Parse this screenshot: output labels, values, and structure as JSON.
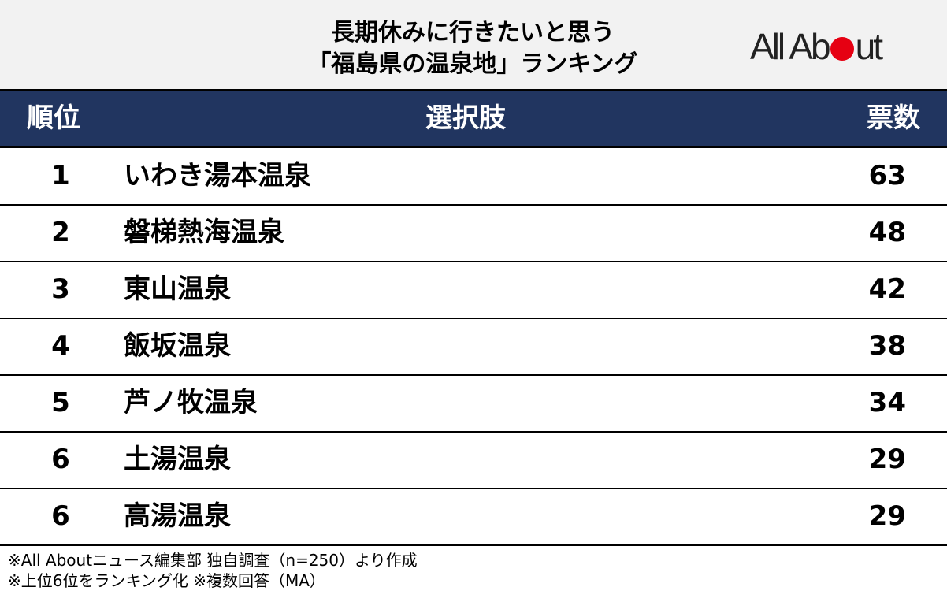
{
  "title_line1": "長期休みに行きたいと思う",
  "title_line2": "「福島県の温泉地」ランキング",
  "logo": "All About",
  "colors": {
    "header_bg": "#213560",
    "top_bg": "#f2f2f2",
    "logo_dot": "#e60012"
  },
  "chart_data": {
    "type": "table",
    "columns": [
      "順位",
      "選択肢",
      "票数"
    ],
    "rows": [
      {
        "rank": "1",
        "name": "いわき湯本温泉",
        "votes": "63"
      },
      {
        "rank": "2",
        "name": "磐梯熱海温泉",
        "votes": "48"
      },
      {
        "rank": "3",
        "name": "東山温泉",
        "votes": "42"
      },
      {
        "rank": "4",
        "name": "飯坂温泉",
        "votes": "38"
      },
      {
        "rank": "5",
        "name": "芦ノ牧温泉",
        "votes": "34"
      },
      {
        "rank": "6",
        "name": "土湯温泉",
        "votes": "29"
      },
      {
        "rank": "6",
        "name": "高湯温泉",
        "votes": "29"
      }
    ]
  },
  "footnotes": [
    "※All Aboutニュース編集部 独自調査（n=250）より作成",
    "※上位6位をランキング化 ※複数回答（MA）"
  ]
}
